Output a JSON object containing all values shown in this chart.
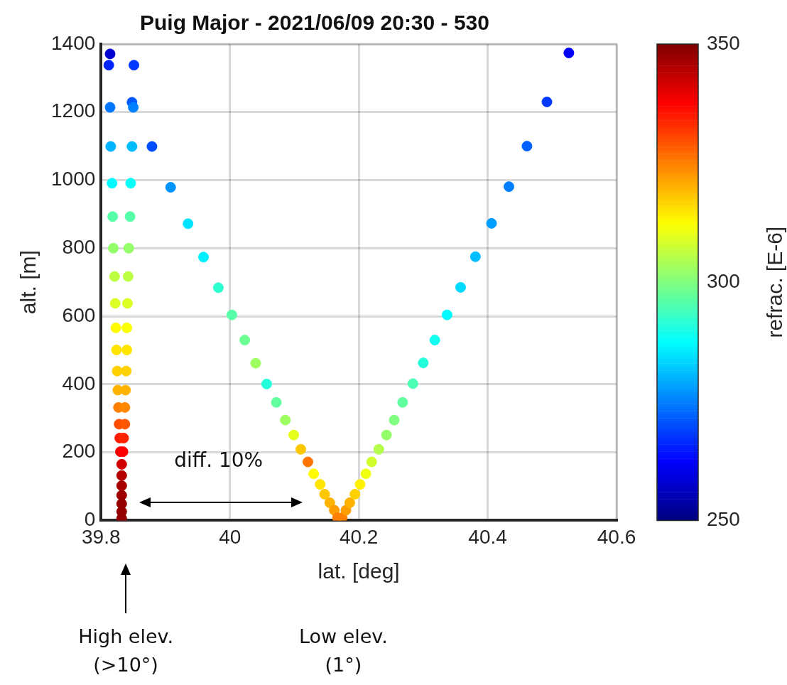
{
  "chart_data": {
    "type": "scatter",
    "title": "Puig Major - 2021/06/09 20:30 - 530",
    "xlabel": "lat. [deg]",
    "ylabel": "alt. [m]",
    "clabel": "refrac. [E-6]",
    "series": [
      {
        "x": [
          39.814,
          39.812,
          39.814,
          39.815,
          39.817,
          39.818,
          39.819,
          39.821,
          39.822,
          39.823,
          39.824,
          39.825,
          39.826,
          39.827,
          39.828,
          39.829,
          39.83,
          39.832,
          39.832,
          39.832,
          39.832,
          39.832,
          39.832,
          39.832,
          39.851,
          39.848,
          39.85,
          39.848,
          39.846,
          39.845,
          39.843,
          39.842,
          39.841,
          39.84,
          39.84,
          39.839,
          39.838,
          39.837,
          39.837,
          39.835,
          39.834,
          39.879,
          39.908,
          39.935,
          39.959,
          39.982,
          40.003,
          40.023,
          40.04,
          40.057,
          40.072,
          40.086,
          40.099,
          40.11,
          40.121,
          40.13,
          40.14,
          40.147,
          40.155,
          40.162,
          40.167,
          40.174,
          40.18,
          40.186,
          40.194,
          40.202,
          40.211,
          40.22,
          40.231,
          40.243,
          40.255,
          40.268,
          40.284,
          40.3,
          40.318,
          40.337,
          40.358,
          40.381,
          40.406,
          40.433,
          40.461,
          40.492,
          40.526
        ],
        "values": [
          1371,
          1338,
          1214,
          1099,
          991,
          893,
          800,
          717,
          638,
          566,
          501,
          439,
          383,
          332,
          283,
          242,
          202,
          165,
          132,
          102,
          74,
          49,
          26,
          6,
          1338,
          1229,
          1214,
          1099,
          991,
          893,
          800,
          717,
          638,
          566,
          501,
          439,
          383,
          332,
          283,
          242,
          202,
          1099,
          979,
          872,
          774,
          684,
          604,
          530,
          462,
          401,
          347,
          295,
          251,
          209,
          172,
          137,
          106,
          77,
          52,
          30,
          8,
          8,
          30,
          52,
          77,
          106,
          137,
          172,
          209,
          251,
          295,
          347,
          402,
          463,
          530,
          604,
          685,
          775,
          873,
          981,
          1100,
          1230,
          1374
        ],
        "cvalues": [
          258,
          266,
          274,
          280,
          287,
          296,
          302,
          306,
          309,
          313,
          315,
          317,
          320,
          325,
          330,
          335,
          339,
          342,
          345,
          346,
          347,
          348,
          348,
          348,
          268,
          271,
          275,
          281,
          288,
          296,
          302,
          306,
          309,
          312,
          315,
          317,
          320,
          324,
          329,
          334,
          338,
          270,
          277,
          285,
          286,
          292,
          296,
          298,
          303,
          291,
          297,
          303,
          310,
          318,
          326,
          313,
          315,
          318,
          320,
          322,
          325,
          325,
          322,
          320,
          317,
          314,
          311,
          308,
          305,
          302,
          300,
          297,
          295,
          291,
          289,
          287,
          284,
          281,
          278,
          275,
          272,
          268,
          262
        ]
      }
    ],
    "xlim": [
      39.8,
      40.6
    ],
    "xticks": [
      39.8,
      40,
      40.2,
      40.4,
      40.6
    ],
    "ylim": [
      0,
      1400
    ],
    "yticks": [
      0,
      200,
      400,
      600,
      800,
      1000,
      1200,
      1400
    ],
    "clim": [
      250,
      350
    ],
    "cticks": [
      250,
      300,
      350
    ],
    "grid": true,
    "marker": "circle",
    "legend": false,
    "annotations": [
      "diff. 10%",
      "High elev. (>10°)",
      "Low elev. (1°)"
    ]
  }
}
